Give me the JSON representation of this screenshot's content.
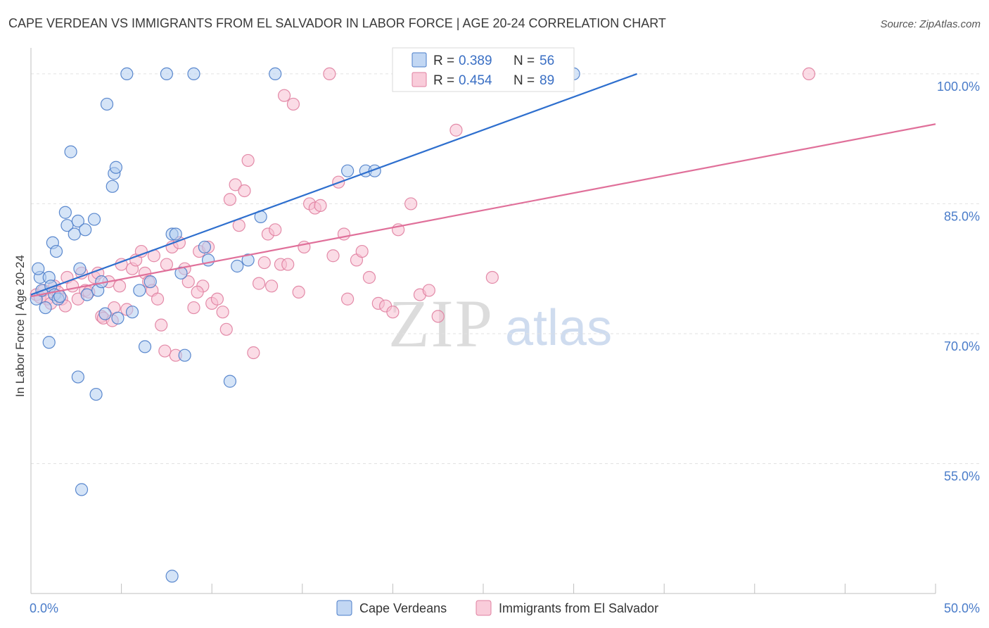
{
  "chart_data": {
    "type": "scatter",
    "title": "CAPE VERDEAN VS IMMIGRANTS FROM EL SALVADOR IN LABOR FORCE | AGE 20-24 CORRELATION CHART",
    "source": "Source: ZipAtlas.com",
    "xlabel": "",
    "ylabel": "In Labor Force | Age 20-24",
    "xlim": [
      0,
      50
    ],
    "ylim": [
      40,
      103
    ],
    "x_tick_labels": [
      {
        "value": 0,
        "label": "0.0%"
      },
      {
        "value": 50,
        "label": "50.0%"
      }
    ],
    "y_tick_labels": [
      {
        "value": 100,
        "label": "100.0%"
      },
      {
        "value": 85,
        "label": "85.0%"
      },
      {
        "value": 70,
        "label": "70.0%"
      },
      {
        "value": 55,
        "label": "55.0%"
      }
    ],
    "y_gridlines": [
      100,
      85,
      70,
      55
    ],
    "x_minor_ticks": [
      0,
      5,
      10,
      15,
      20,
      25,
      30,
      35,
      40,
      45,
      50
    ],
    "watermark": {
      "part1": "ZIP",
      "part2": "atlas"
    },
    "legend_position": "top-center",
    "series": [
      {
        "name": "Cape Verdeans",
        "color": "#4a7cc9",
        "fill": "#b3cdf0",
        "stats": {
          "r_label": "R =",
          "r": "0.389",
          "n_label": "N =",
          "n": "56"
        },
        "trend": {
          "x0": 0,
          "y0": 74.5,
          "x1": 33.5,
          "y1": 100.0
        },
        "points": [
          [
            0.3,
            74.0
          ],
          [
            0.5,
            76.5
          ],
          [
            0.4,
            77.5
          ],
          [
            0.6,
            75.0
          ],
          [
            0.8,
            73.0
          ],
          [
            1.0,
            76.5
          ],
          [
            1.1,
            75.5
          ],
          [
            1.3,
            74.5
          ],
          [
            1.0,
            69.0
          ],
          [
            1.5,
            74.0
          ],
          [
            1.2,
            80.5
          ],
          [
            1.4,
            79.5
          ],
          [
            1.6,
            74.3
          ],
          [
            1.9,
            84.0
          ],
          [
            2.0,
            82.5
          ],
          [
            2.2,
            91.0
          ],
          [
            2.4,
            81.5
          ],
          [
            2.6,
            83.0
          ],
          [
            2.7,
            77.5
          ],
          [
            3.0,
            82.0
          ],
          [
            3.1,
            74.5
          ],
          [
            3.5,
            83.2
          ],
          [
            3.7,
            75.0
          ],
          [
            3.9,
            76.0
          ],
          [
            4.2,
            96.5
          ],
          [
            4.5,
            87.0
          ],
          [
            4.6,
            88.5
          ],
          [
            4.7,
            89.2
          ],
          [
            4.1,
            72.3
          ],
          [
            4.8,
            71.8
          ],
          [
            5.3,
            100.0
          ],
          [
            5.6,
            72.5
          ],
          [
            6.0,
            75.0
          ],
          [
            6.3,
            68.5
          ],
          [
            6.6,
            76.0
          ],
          [
            7.5,
            100.0
          ],
          [
            7.8,
            81.5
          ],
          [
            8.0,
            81.5
          ],
          [
            8.5,
            67.5
          ],
          [
            8.3,
            77.0
          ],
          [
            9.0,
            100.0
          ],
          [
            9.6,
            80.0
          ],
          [
            9.8,
            78.5
          ],
          [
            11.0,
            64.5
          ],
          [
            11.4,
            77.8
          ],
          [
            12.0,
            78.5
          ],
          [
            12.7,
            83.5
          ],
          [
            13.5,
            100.0
          ],
          [
            17.5,
            88.8
          ],
          [
            18.5,
            88.8
          ],
          [
            19.0,
            88.8
          ],
          [
            30.0,
            100.0
          ],
          [
            2.6,
            65.0
          ],
          [
            3.6,
            63.0
          ],
          [
            2.8,
            52.0
          ],
          [
            7.8,
            42.0
          ]
        ]
      },
      {
        "name": "Immigrants from El Salvador",
        "color": "#e07fa0",
        "fill": "#f7bfd1",
        "stats": {
          "r_label": "R =",
          "r": "0.454",
          "n_label": "N =",
          "n": "89"
        },
        "trend": {
          "x0": 0,
          "y0": 74.3,
          "x1": 50,
          "y1": 94.2
        },
        "points": [
          [
            0.3,
            74.5
          ],
          [
            0.5,
            74.2
          ],
          [
            0.7,
            75.0
          ],
          [
            0.9,
            74.0
          ],
          [
            1.1,
            73.5
          ],
          [
            1.3,
            75.5
          ],
          [
            1.5,
            74.8
          ],
          [
            1.7,
            74.0
          ],
          [
            1.9,
            73.2
          ],
          [
            2.0,
            76.5
          ],
          [
            2.3,
            75.5
          ],
          [
            2.6,
            74.0
          ],
          [
            2.8,
            77.0
          ],
          [
            3.0,
            75.0
          ],
          [
            3.2,
            74.8
          ],
          [
            3.5,
            76.5
          ],
          [
            3.7,
            77.0
          ],
          [
            3.9,
            72.0
          ],
          [
            4.0,
            71.8
          ],
          [
            4.3,
            76.0
          ],
          [
            4.6,
            73.0
          ],
          [
            4.9,
            75.5
          ],
          [
            5.0,
            78.0
          ],
          [
            5.3,
            72.8
          ],
          [
            5.6,
            77.5
          ],
          [
            5.8,
            78.5
          ],
          [
            6.1,
            79.5
          ],
          [
            6.3,
            77.0
          ],
          [
            6.5,
            76.0
          ],
          [
            6.7,
            75.0
          ],
          [
            7.0,
            74.0
          ],
          [
            7.2,
            71.0
          ],
          [
            7.5,
            78.0
          ],
          [
            7.8,
            80.0
          ],
          [
            8.0,
            67.5
          ],
          [
            8.2,
            80.5
          ],
          [
            8.5,
            77.5
          ],
          [
            8.7,
            76.0
          ],
          [
            9.0,
            73.0
          ],
          [
            9.3,
            79.5
          ],
          [
            9.5,
            75.5
          ],
          [
            9.8,
            80.0
          ],
          [
            10.0,
            73.5
          ],
          [
            10.3,
            74.0
          ],
          [
            10.6,
            72.5
          ],
          [
            10.8,
            70.5
          ],
          [
            11.0,
            85.5
          ],
          [
            11.3,
            87.2
          ],
          [
            11.5,
            82.5
          ],
          [
            11.8,
            86.5
          ],
          [
            12.0,
            90.0
          ],
          [
            12.3,
            67.8
          ],
          [
            12.6,
            75.8
          ],
          [
            12.9,
            78.2
          ],
          [
            13.1,
            81.5
          ],
          [
            13.3,
            75.5
          ],
          [
            13.5,
            82.0
          ],
          [
            13.8,
            78.0
          ],
          [
            14.0,
            97.5
          ],
          [
            14.5,
            96.5
          ],
          [
            14.8,
            74.8
          ],
          [
            15.1,
            80.0
          ],
          [
            15.4,
            85.0
          ],
          [
            15.7,
            84.5
          ],
          [
            16.0,
            84.8
          ],
          [
            16.5,
            100.0
          ],
          [
            16.7,
            79.0
          ],
          [
            17.0,
            87.5
          ],
          [
            17.3,
            81.5
          ],
          [
            17.5,
            74.0
          ],
          [
            18.0,
            78.5
          ],
          [
            18.3,
            79.5
          ],
          [
            18.7,
            76.5
          ],
          [
            19.2,
            73.5
          ],
          [
            19.6,
            73.2
          ],
          [
            20.0,
            72.5
          ],
          [
            20.3,
            82.0
          ],
          [
            21.0,
            85.0
          ],
          [
            21.5,
            74.5
          ],
          [
            22.0,
            75.0
          ],
          [
            22.5,
            72.0
          ],
          [
            23.5,
            93.5
          ],
          [
            25.5,
            76.5
          ],
          [
            43.0,
            100.0
          ],
          [
            4.5,
            71.5
          ],
          [
            9.2,
            74.8
          ],
          [
            7.4,
            68.0
          ],
          [
            6.8,
            79.0
          ],
          [
            14.2,
            78.0
          ]
        ]
      }
    ]
  }
}
